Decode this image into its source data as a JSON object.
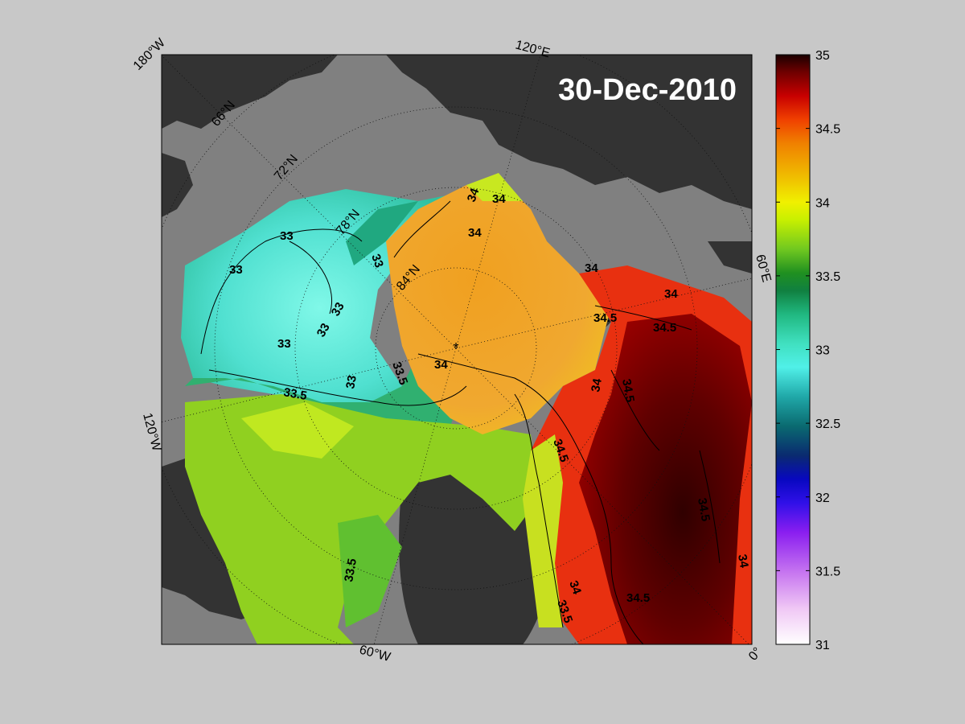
{
  "title": "30-Dec-2010",
  "lon_labels": {
    "w180": "180°W",
    "e120": "120°E",
    "e60": "60°E",
    "w120": "120°W",
    "w60": "60°W",
    "zero": "0°"
  },
  "lat_labels": {
    "n66": "66°N",
    "n72": "72°N",
    "n78": "78°N",
    "n84": "84°N"
  },
  "contour_labels": [
    "33",
    "33",
    "33",
    "33",
    "33",
    "33",
    "33",
    "33.5",
    "33.5",
    "33.5",
    "34",
    "34",
    "34",
    "34",
    "34",
    "34",
    "34.5",
    "34.5",
    "34.5",
    "34.5",
    "34.5",
    "34.5",
    "34",
    "34",
    "33.5",
    "34"
  ],
  "colorbar": {
    "ticks": [
      "35",
      "34.5",
      "34",
      "33.5",
      "33",
      "32.5",
      "32",
      "31.5",
      "31"
    ],
    "min": 31,
    "max": 35
  },
  "colors": {
    "background": "#c8c8c8",
    "ocean_gray": "#808080",
    "land": "#333333"
  }
}
